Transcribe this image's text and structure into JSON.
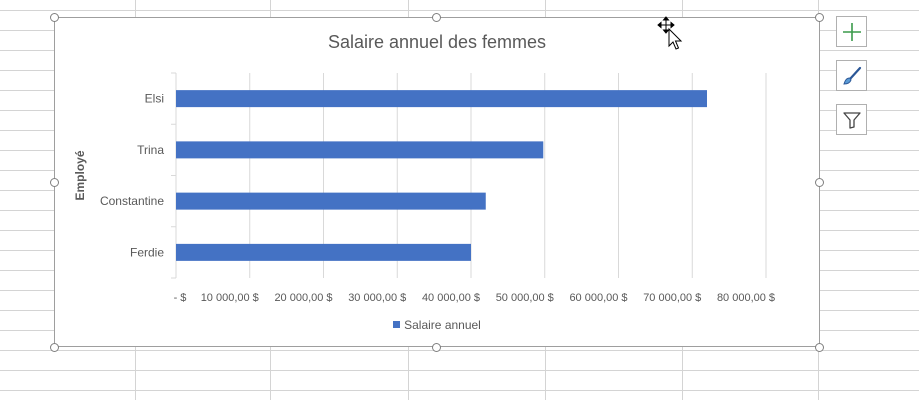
{
  "chart_data": {
    "type": "bar",
    "orientation": "horizontal",
    "title": "Salaire annuel des femmes",
    "ylabel": "Employé",
    "xlabel": "",
    "categories": [
      "Elsi",
      "Trina",
      "Constantine",
      "Ferdie"
    ],
    "series": [
      {
        "name": "Salaire annuel",
        "values": [
          72000,
          49800,
          42000,
          40000
        ],
        "color": "#4472c4"
      }
    ],
    "xlim": [
      0,
      80000
    ],
    "x_ticks": [
      0,
      10000,
      20000,
      30000,
      40000,
      50000,
      60000,
      70000,
      80000
    ],
    "x_tick_labels": [
      "-   $",
      "10 000,00  $",
      "20 000,00  $",
      "30 000,00  $",
      "40 000,00  $",
      "50 000,00  $",
      "60 000,00  $",
      "70 000,00  $",
      "80 000,00  $"
    ],
    "grid": "vertical",
    "legend": {
      "position": "bottom",
      "label": "Salaire annuel"
    }
  },
  "chart_tools": {
    "add_element_icon": "plus-icon",
    "style_icon": "paintbrush-icon",
    "filter_icon": "funnel-icon"
  },
  "colors": {
    "bar": "#4472c4",
    "gridline": "#d9d9d9",
    "text": "#595959",
    "add_icon": "#3a9a4a"
  }
}
